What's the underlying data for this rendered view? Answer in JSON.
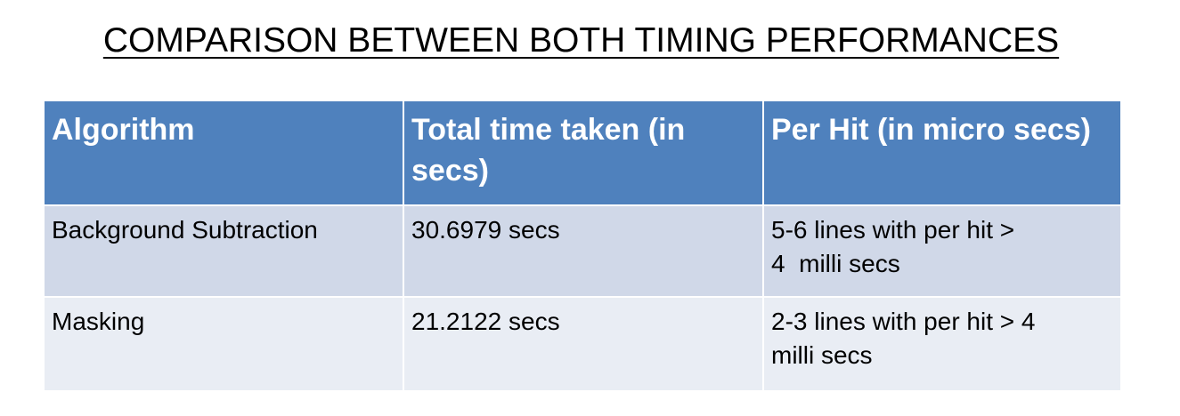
{
  "title": "COMPARISON BETWEEN BOTH TIMING PERFORMANCES",
  "table": {
    "headers": [
      "Algorithm",
      "Total time taken (in secs)",
      "Per Hit (in micro secs)"
    ],
    "rows": [
      {
        "algorithm": "Background Subtraction",
        "total_time": "30.6979 secs",
        "per_hit_line1": "5-6 lines with per hit >",
        "per_hit_line2": "4  milli secs"
      },
      {
        "algorithm": "Masking",
        "total_time": "21.2122 secs",
        "per_hit_line1": "2-3 lines with per hit > 4",
        "per_hit_line2": "milli secs"
      }
    ]
  },
  "colors": {
    "header_bg": "#4f81bd",
    "row_odd_bg": "#d0d8e8",
    "row_even_bg": "#e9edf4"
  }
}
